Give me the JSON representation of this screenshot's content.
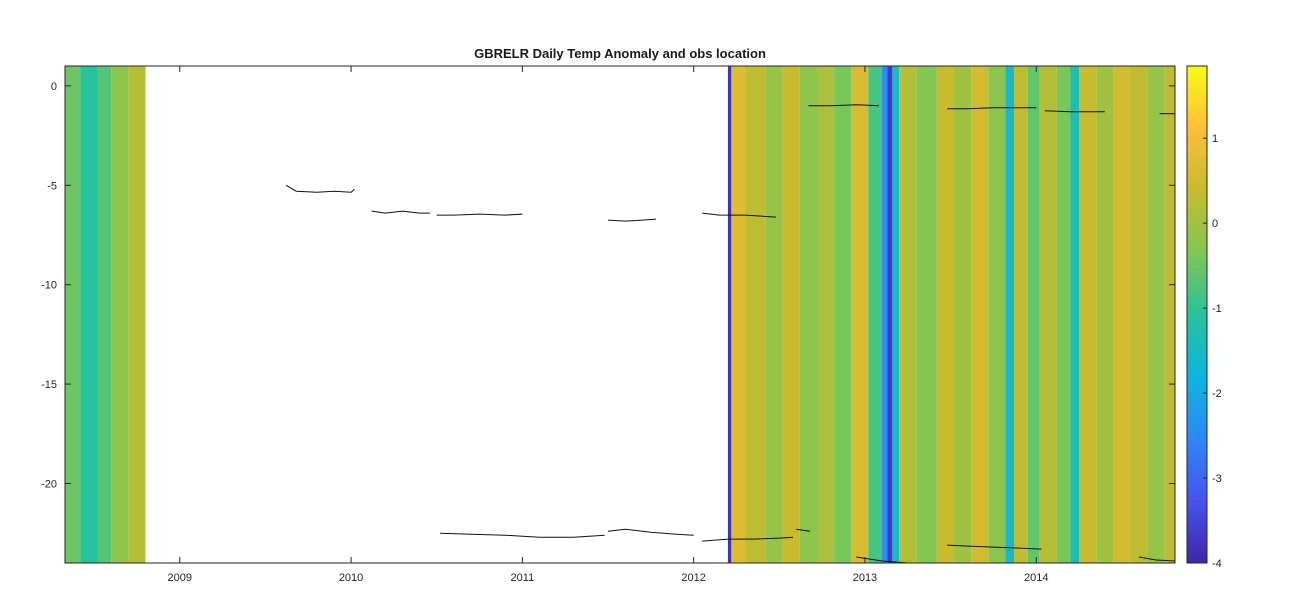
{
  "chart_data": {
    "type": "heatmap",
    "title": "GBRELR Daily Temp Anomaly and obs location",
    "xlabel": "",
    "ylabel": "",
    "x_ticks": [
      "2009",
      "2010",
      "2011",
      "2012",
      "2013",
      "2014"
    ],
    "x_tick_values": [
      2009,
      2010,
      2011,
      2012,
      2013,
      2014
    ],
    "xlim": [
      2008.33,
      2014.81
    ],
    "y_ticks": [
      "0",
      "-5",
      "-10",
      "-15",
      "-20"
    ],
    "y_tick_values": [
      0,
      -5,
      -10,
      -15,
      -20
    ],
    "ylim": [
      -24,
      1
    ],
    "colorbar": {
      "ticks": [
        "1",
        "0",
        "-1",
        "-2",
        "-3",
        "-4"
      ],
      "tick_values": [
        1,
        0,
        -1,
        -2,
        -3,
        -4
      ],
      "range": [
        -4,
        1.85
      ],
      "colormap": "parula",
      "colormap_stops": [
        "#3e26a8",
        "#4653f0",
        "#2e87f7",
        "#0db5de",
        "#26c39b",
        "#7fc753",
        "#c8bb2e",
        "#fcbf39",
        "#f9fb14"
      ]
    },
    "anomaly_bands": [
      {
        "start": 2008.33,
        "end": 2008.42,
        "value": -0.5
      },
      {
        "start": 2008.42,
        "end": 2008.52,
        "value": -1.1
      },
      {
        "start": 2008.52,
        "end": 2008.6,
        "value": -0.7
      },
      {
        "start": 2008.6,
        "end": 2008.7,
        "value": -0.2
      },
      {
        "start": 2008.7,
        "end": 2008.8,
        "value": 0.2
      },
      {
        "start": 2012.2,
        "end": 2012.22,
        "value": -3.8
      },
      {
        "start": 2012.22,
        "end": 2012.3,
        "value": 0.7
      },
      {
        "start": 2012.3,
        "end": 2012.42,
        "value": 0.3
      },
      {
        "start": 2012.42,
        "end": 2012.52,
        "value": -0.1
      },
      {
        "start": 2012.52,
        "end": 2012.62,
        "value": 0.4
      },
      {
        "start": 2012.62,
        "end": 2012.72,
        "value": -0.2
      },
      {
        "start": 2012.72,
        "end": 2012.82,
        "value": 0.1
      },
      {
        "start": 2012.82,
        "end": 2012.92,
        "value": -0.4
      },
      {
        "start": 2012.92,
        "end": 2013.02,
        "value": 0.6
      },
      {
        "start": 2013.02,
        "end": 2013.1,
        "value": -0.8
      },
      {
        "start": 2013.1,
        "end": 2013.13,
        "value": -2.5
      },
      {
        "start": 2013.13,
        "end": 2013.16,
        "value": -3.7
      },
      {
        "start": 2013.16,
        "end": 2013.2,
        "value": -1.5
      },
      {
        "start": 2013.2,
        "end": 2013.3,
        "value": 0.2
      },
      {
        "start": 2013.3,
        "end": 2013.42,
        "value": -0.3
      },
      {
        "start": 2013.42,
        "end": 2013.52,
        "value": 0.4
      },
      {
        "start": 2013.52,
        "end": 2013.62,
        "value": 0.0
      },
      {
        "start": 2013.62,
        "end": 2013.72,
        "value": 0.5
      },
      {
        "start": 2013.72,
        "end": 2013.82,
        "value": -0.2
      },
      {
        "start": 2013.82,
        "end": 2013.87,
        "value": -1.6
      },
      {
        "start": 2013.87,
        "end": 2013.95,
        "value": 0.3
      },
      {
        "start": 2013.95,
        "end": 2014.02,
        "value": -0.6
      },
      {
        "start": 2014.02,
        "end": 2014.12,
        "value": 0.2
      },
      {
        "start": 2014.12,
        "end": 2014.2,
        "value": -0.4
      },
      {
        "start": 2014.2,
        "end": 2014.25,
        "value": -1.4
      },
      {
        "start": 2014.25,
        "end": 2014.35,
        "value": 0.4
      },
      {
        "start": 2014.35,
        "end": 2014.45,
        "value": 0.0
      },
      {
        "start": 2014.45,
        "end": 2014.55,
        "value": 0.5
      },
      {
        "start": 2014.55,
        "end": 2014.65,
        "value": 0.3
      },
      {
        "start": 2014.65,
        "end": 2014.75,
        "value": -0.1
      },
      {
        "start": 2014.75,
        "end": 2014.81,
        "value": 0.3
      }
    ],
    "obs_location_series": [
      {
        "x": [
          2009.62,
          2009.68,
          2009.8,
          2009.9,
          2010.0,
          2010.02
        ],
        "y": [
          -5.0,
          -5.3,
          -5.35,
          -5.3,
          -5.35,
          -5.2
        ]
      },
      {
        "x": [
          2010.12,
          2010.2,
          2010.3,
          2010.4,
          2010.46
        ],
        "y": [
          -6.3,
          -6.4,
          -6.3,
          -6.4,
          -6.4
        ]
      },
      {
        "x": [
          2010.5,
          2010.6,
          2010.75,
          2010.9,
          2011.0
        ],
        "y": [
          -6.5,
          -6.5,
          -6.45,
          -6.5,
          -6.45
        ]
      },
      {
        "x": [
          2011.5,
          2011.6,
          2011.7,
          2011.78
        ],
        "y": [
          -6.75,
          -6.8,
          -6.75,
          -6.7
        ]
      },
      {
        "x": [
          2012.05,
          2012.15,
          2012.3,
          2012.48
        ],
        "y": [
          -6.4,
          -6.5,
          -6.5,
          -6.6
        ]
      },
      {
        "x": [
          2012.67,
          2012.8,
          2012.95,
          2013.08
        ],
        "y": [
          -1.0,
          -1.0,
          -0.95,
          -1.0
        ]
      },
      {
        "x": [
          2013.48,
          2013.6,
          2013.75,
          2013.92,
          2014.0
        ],
        "y": [
          -1.15,
          -1.15,
          -1.1,
          -1.1,
          -1.1
        ]
      },
      {
        "x": [
          2014.05,
          2014.2,
          2014.35,
          2014.4
        ],
        "y": [
          -1.25,
          -1.3,
          -1.3,
          -1.3
        ]
      },
      {
        "x": [
          2014.72,
          2014.81
        ],
        "y": [
          -1.4,
          -1.4
        ]
      },
      {
        "x": [
          2010.52,
          2010.7,
          2010.9,
          2011.1,
          2011.3,
          2011.48
        ],
        "y": [
          -22.5,
          -22.55,
          -22.6,
          -22.7,
          -22.7,
          -22.6
        ]
      },
      {
        "x": [
          2011.5,
          2011.6,
          2011.75,
          2011.9,
          2012.0
        ],
        "y": [
          -22.4,
          -22.3,
          -22.45,
          -22.55,
          -22.6
        ]
      },
      {
        "x": [
          2012.05,
          2012.2,
          2012.35,
          2012.5,
          2012.58
        ],
        "y": [
          -22.9,
          -22.8,
          -22.8,
          -22.75,
          -22.7
        ]
      },
      {
        "x": [
          2012.6,
          2012.68
        ],
        "y": [
          -22.3,
          -22.4
        ]
      },
      {
        "x": [
          2012.95,
          2013.1,
          2013.25,
          2013.38
        ],
        "y": [
          -23.7,
          -23.9,
          -24.0,
          -24.0
        ]
      },
      {
        "x": [
          2013.48,
          2013.6,
          2013.75,
          2013.9,
          2014.03
        ],
        "y": [
          -23.1,
          -23.15,
          -23.2,
          -23.25,
          -23.3
        ]
      },
      {
        "x": [
          2014.6,
          2014.7,
          2014.81
        ],
        "y": [
          -23.7,
          -23.85,
          -23.9
        ]
      }
    ],
    "grid": false
  }
}
